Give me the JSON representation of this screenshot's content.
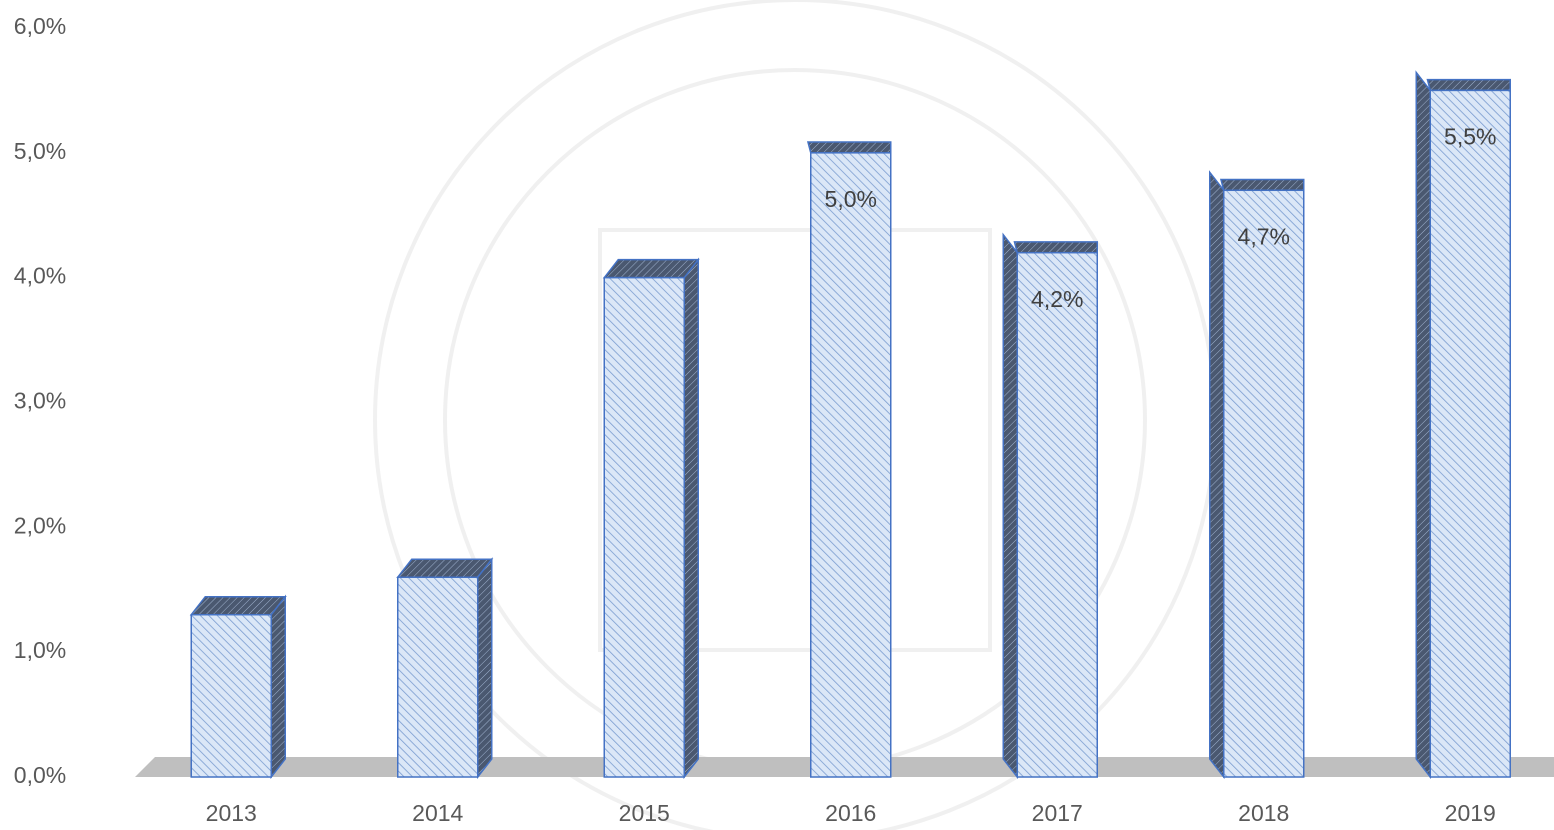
{
  "chart_data": {
    "type": "bar",
    "categories": [
      "2013",
      "2014",
      "2015",
      "2016",
      "2017",
      "2018",
      "2019"
    ],
    "values": [
      1.3,
      1.6,
      4.0,
      5.0,
      4.2,
      4.7,
      5.5
    ],
    "value_labels": [
      null,
      null,
      null,
      "5,0%",
      "4,2%",
      "4,7%",
      "5,5%"
    ],
    "color": "#dbe7f7",
    "ylim": [
      0,
      6
    ],
    "yticks": [
      {
        "value": 0,
        "label": "0,0%"
      },
      {
        "value": 1,
        "label": "1,0%"
      },
      {
        "value": 2,
        "label": "2,0%"
      },
      {
        "value": 3,
        "label": "3,0%"
      },
      {
        "value": 4,
        "label": "4,0%"
      },
      {
        "value": 5,
        "label": "5,0%"
      },
      {
        "value": 6,
        "label": "6,0%"
      }
    ],
    "grid": false
  }
}
